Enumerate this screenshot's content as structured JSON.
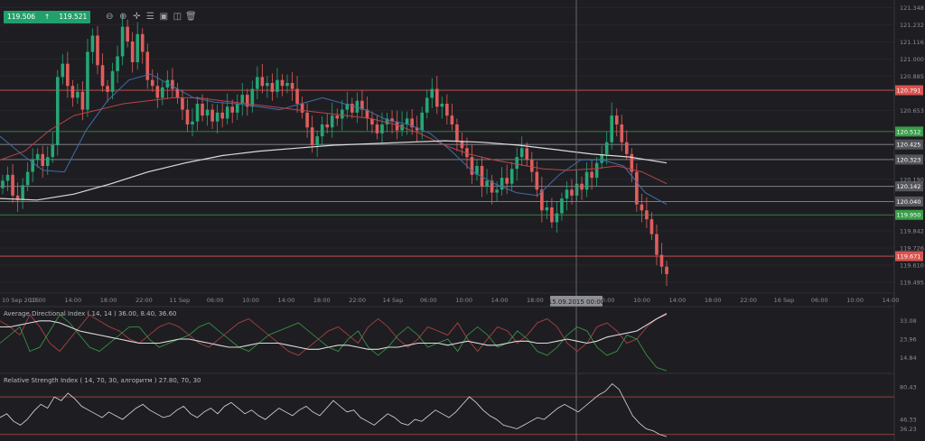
{
  "toolbar": {
    "bid": "119.506",
    "ask": "119.521",
    "direction_icon": "up-arrow-icon",
    "icons": [
      "zoom-out-icon",
      "zoom-in-icon",
      "crosshair-icon",
      "settings-icon",
      "screenshot-icon",
      "shapes-icon",
      "delete-icon"
    ]
  },
  "colors": {
    "up": "#26a676",
    "down": "#e05d5d",
    "level_red": "#d9534f",
    "level_green": "#3a9d4a",
    "ma_blue": "#3f6ea8",
    "ma_red": "#b8454a",
    "ma_white": "#dcdcdc",
    "crosshair": "#77787e"
  },
  "crosshair_label": "15.09.2015 00:00",
  "chart_data": [
    {
      "type": "candlestick",
      "ylim": [
        119.44,
        121.4
      ],
      "y_ticks": [
        "121.348",
        "121.232",
        "121.116",
        "121.000",
        "120.885",
        "120.653",
        "120.190",
        "119.842",
        "119.726",
        "119.610",
        "119.495"
      ],
      "x_ticks": [
        "10 Sep 2015",
        "10:00",
        "14:00",
        "18:00",
        "22:00",
        "11 Sep",
        "06:00",
        "10:00",
        "14:00",
        "18:00",
        "22:00",
        "14 Sep",
        "06:00",
        "10:00",
        "14:00",
        "18:00",
        "Sep",
        "06:00",
        "10:00",
        "14:00",
        "18:00",
        "22:00",
        "16 Sep",
        "06:00",
        "10:00",
        "14:00"
      ],
      "levels": [
        {
          "label": "120.791",
          "value": 120.791,
          "style": "red"
        },
        {
          "label": "120.512",
          "value": 120.512,
          "style": "green"
        },
        {
          "label": "120.425",
          "value": 120.425,
          "style": "gray"
        },
        {
          "label": "120.323",
          "value": 120.323,
          "style": "gray"
        },
        {
          "label": "120.142",
          "value": 120.142,
          "style": "gray"
        },
        {
          "label": "120.040",
          "value": 120.04,
          "style": "gray"
        },
        {
          "label": "119.950",
          "value": 119.95,
          "style": "green"
        },
        {
          "label": "119.671",
          "value": 119.671,
          "style": "red"
        }
      ],
      "closes": [
        120.18,
        120.22,
        120.08,
        120.05,
        120.15,
        120.24,
        120.32,
        120.36,
        120.28,
        120.34,
        120.42,
        120.88,
        120.97,
        120.82,
        120.74,
        120.78,
        120.66,
        121.05,
        121.16,
        120.96,
        120.82,
        120.78,
        120.92,
        121.02,
        121.22,
        121.12,
        120.98,
        121.17,
        121.05,
        120.86,
        120.82,
        120.74,
        120.81,
        120.86,
        120.8,
        120.74,
        120.66,
        120.56,
        120.58,
        120.7,
        120.62,
        120.66,
        120.58,
        120.64,
        120.6,
        120.68,
        120.64,
        120.7,
        120.76,
        120.68,
        120.8,
        120.88,
        120.82,
        120.84,
        120.78,
        120.86,
        120.82,
        120.84,
        120.8,
        120.7,
        120.64,
        120.54,
        120.42,
        120.48,
        120.56,
        120.54,
        120.62,
        120.6,
        120.66,
        120.7,
        120.64,
        120.72,
        120.66,
        120.6,
        120.56,
        120.5,
        120.56,
        120.6,
        120.58,
        120.52,
        120.56,
        120.6,
        120.54,
        120.52,
        120.64,
        120.74,
        120.8,
        120.68,
        120.7,
        120.62,
        120.56,
        120.45,
        120.4,
        120.34,
        120.22,
        120.28,
        120.14,
        120.18,
        120.1,
        120.12,
        120.2,
        120.16,
        120.26,
        120.34,
        120.4,
        120.32,
        120.24,
        120.12,
        119.98,
        120.0,
        119.9,
        119.96,
        120.06,
        120.12,
        120.08,
        120.16,
        120.12,
        120.24,
        120.2,
        120.3,
        120.36,
        120.44,
        120.62,
        120.56,
        120.44,
        120.36,
        120.24,
        120.02,
        119.98,
        119.92,
        119.82,
        119.68,
        119.6,
        119.55
      ],
      "ma_short": [
        120.48,
        120.36,
        120.25,
        120.24,
        120.52,
        120.72,
        120.86,
        120.9,
        120.82,
        120.74,
        120.71,
        120.7,
        120.68,
        120.66,
        120.7,
        120.74,
        120.7,
        120.66,
        120.59,
        120.56,
        120.5,
        120.38,
        120.24,
        120.16,
        120.1,
        120.08,
        120.22,
        120.32,
        120.32,
        120.28,
        120.1,
        120.02
      ],
      "ma_long": [
        120.32,
        120.38,
        120.52,
        120.62,
        120.66,
        120.7,
        120.72,
        120.74,
        120.74,
        120.72,
        120.7,
        120.68,
        120.66,
        120.64,
        120.62,
        120.6,
        120.56,
        120.5,
        120.42,
        120.36,
        120.32,
        120.29,
        120.26,
        120.25,
        120.26,
        120.28,
        120.24,
        120.16
      ],
      "ma_slow": [
        120.06,
        120.05,
        120.09,
        120.16,
        120.24,
        120.3,
        120.35,
        120.38,
        120.4,
        120.42,
        120.43,
        120.44,
        120.45,
        120.44,
        120.42,
        120.39,
        120.36,
        120.34,
        120.3
      ]
    },
    {
      "type": "line",
      "title": "Average Directional Index ( 14, 14 ) 36.00, 8.40, 36.60",
      "y_ticks": [
        "33.08",
        "23.96",
        "14.84"
      ],
      "ylim": [
        8,
        40
      ],
      "series": [
        {
          "values": [
            33,
            30,
            26,
            36,
            30,
            22,
            18,
            24,
            30,
            36,
            33,
            30,
            28,
            24,
            22,
            26,
            30,
            32,
            30,
            26,
            22,
            20,
            24,
            28,
            32,
            34,
            30,
            26,
            22,
            18,
            16,
            20,
            24,
            28,
            30,
            26,
            22,
            30,
            34,
            30,
            24,
            20,
            24,
            30,
            28,
            26,
            32,
            24,
            18,
            24,
            30,
            28,
            22,
            26,
            32,
            34,
            30,
            22,
            18,
            22,
            30,
            32,
            28,
            22,
            24,
            30,
            34,
            36
          ]
        },
        {
          "values": [
            22,
            26,
            30,
            18,
            20,
            28,
            36,
            32,
            26,
            20,
            18,
            22,
            26,
            30,
            30,
            24,
            20,
            22,
            24,
            26,
            30,
            32,
            28,
            24,
            20,
            18,
            22,
            26,
            28,
            30,
            32,
            28,
            24,
            20,
            18,
            24,
            28,
            20,
            16,
            20,
            26,
            30,
            26,
            20,
            22,
            24,
            18,
            26,
            30,
            26,
            20,
            22,
            28,
            24,
            18,
            16,
            20,
            26,
            30,
            28,
            20,
            16,
            18,
            26,
            24,
            16,
            10,
            8.4
          ]
        },
        {
          "values": [
            30,
            30,
            31,
            32,
            33,
            33,
            32,
            30,
            28,
            27,
            26,
            25,
            24,
            23,
            22,
            22,
            22,
            23,
            24,
            24,
            23,
            22,
            21,
            20,
            20,
            21,
            22,
            22,
            22,
            21,
            20,
            19,
            19,
            20,
            21,
            21,
            20,
            19,
            19,
            20,
            20,
            21,
            22,
            22,
            22,
            21,
            22,
            23,
            22,
            21,
            21,
            22,
            23,
            23,
            22,
            22,
            23,
            24,
            23,
            22,
            23,
            25,
            26,
            27,
            28,
            31,
            34,
            36.6
          ]
        }
      ]
    },
    {
      "type": "line",
      "title": "Relative Strength Index ( 14, 70, 30, алгоритм ) 27.80, 70, 30",
      "y_ticks": [
        "80.43",
        "46.33",
        "36.23"
      ],
      "ylim": [
        25,
        95
      ],
      "levels": [
        70,
        30
      ],
      "series": [
        {
          "values": [
            48,
            52,
            44,
            40,
            46,
            55,
            62,
            58,
            70,
            66,
            74,
            68,
            60,
            56,
            52,
            48,
            54,
            50,
            46,
            52,
            58,
            62,
            56,
            52,
            48,
            50,
            56,
            60,
            52,
            48,
            54,
            58,
            52,
            60,
            64,
            58,
            52,
            56,
            50,
            46,
            52,
            58,
            54,
            50,
            56,
            60,
            54,
            50,
            58,
            66,
            60,
            54,
            56,
            48,
            44,
            40,
            46,
            52,
            48,
            42,
            40,
            46,
            44,
            50,
            56,
            52,
            48,
            54,
            62,
            70,
            64,
            56,
            50,
            46,
            40,
            38,
            36,
            40,
            44,
            48,
            46,
            52,
            58,
            62,
            58,
            54,
            60,
            66,
            72,
            76,
            84,
            78,
            64,
            50,
            42,
            36,
            34,
            30,
            27.8
          ]
        }
      ]
    }
  ]
}
